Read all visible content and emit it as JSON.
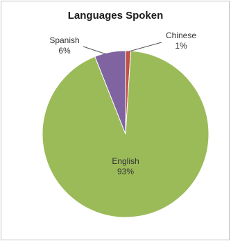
{
  "chart_data": {
    "type": "pie",
    "title": "Languages Spoken",
    "slices": [
      {
        "label": "English",
        "value": 93,
        "pct_label": "93%",
        "color": "#9bbb59"
      },
      {
        "label": "Spanish",
        "value": 6,
        "pct_label": "6%",
        "color": "#8064a2"
      },
      {
        "label": "Chinese",
        "value": 1,
        "pct_label": "1%",
        "color": "#c0504d"
      }
    ],
    "start_angle_deg": 0,
    "direction": "clockwise",
    "border": "#ffffff",
    "legend": "none"
  }
}
